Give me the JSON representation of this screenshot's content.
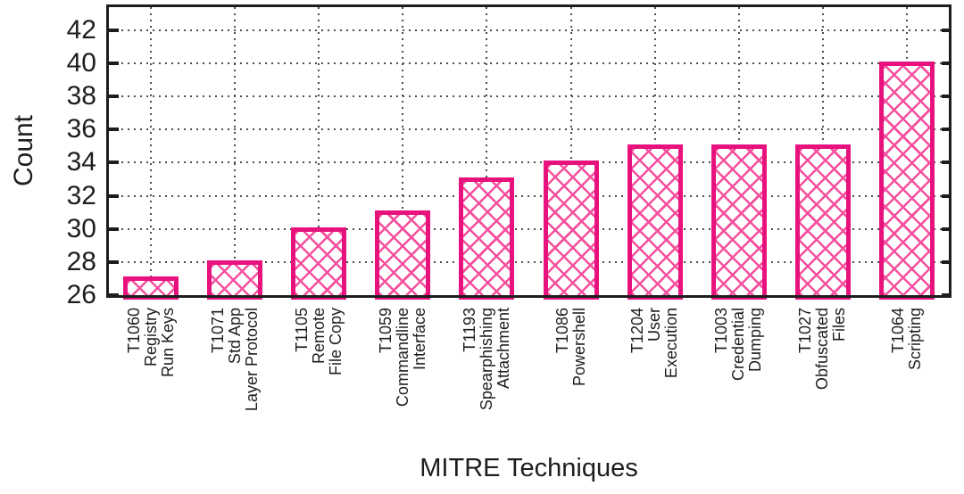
{
  "chart_data": {
    "type": "bar",
    "title": "",
    "xlabel": "MITRE Techniques",
    "ylabel": "Count",
    "categories": [
      "T1060\nRegistry\nRun Keys",
      "T1071\nStd App\nLayer Protocol",
      "T1105\nRemote\nFile Copy",
      "T1059\nCommandline\nInterface",
      "T1193\nSpearphishing\nAttachment",
      "T1086\nPowershell",
      "T1204\nUser\nExecution",
      "T1003\nCredential\nDumping",
      "T1027\nObfuscated\nFiles",
      "T1064\nScripting"
    ],
    "values": [
      27,
      28,
      30,
      31,
      33,
      34,
      35,
      35,
      35,
      40
    ],
    "yticks": [
      26,
      28,
      30,
      32,
      34,
      36,
      38,
      40,
      42
    ],
    "ylim": [
      26,
      43.4
    ],
    "grid": true,
    "legend_position": "none",
    "bar_style": "crosshatch",
    "colors": {
      "bar_border": "#e8127e",
      "bar_hatch": "#f5509e",
      "axis": "#1d1d1d",
      "grid": "#4d4d4d",
      "text": "#1d1d1d"
    }
  }
}
